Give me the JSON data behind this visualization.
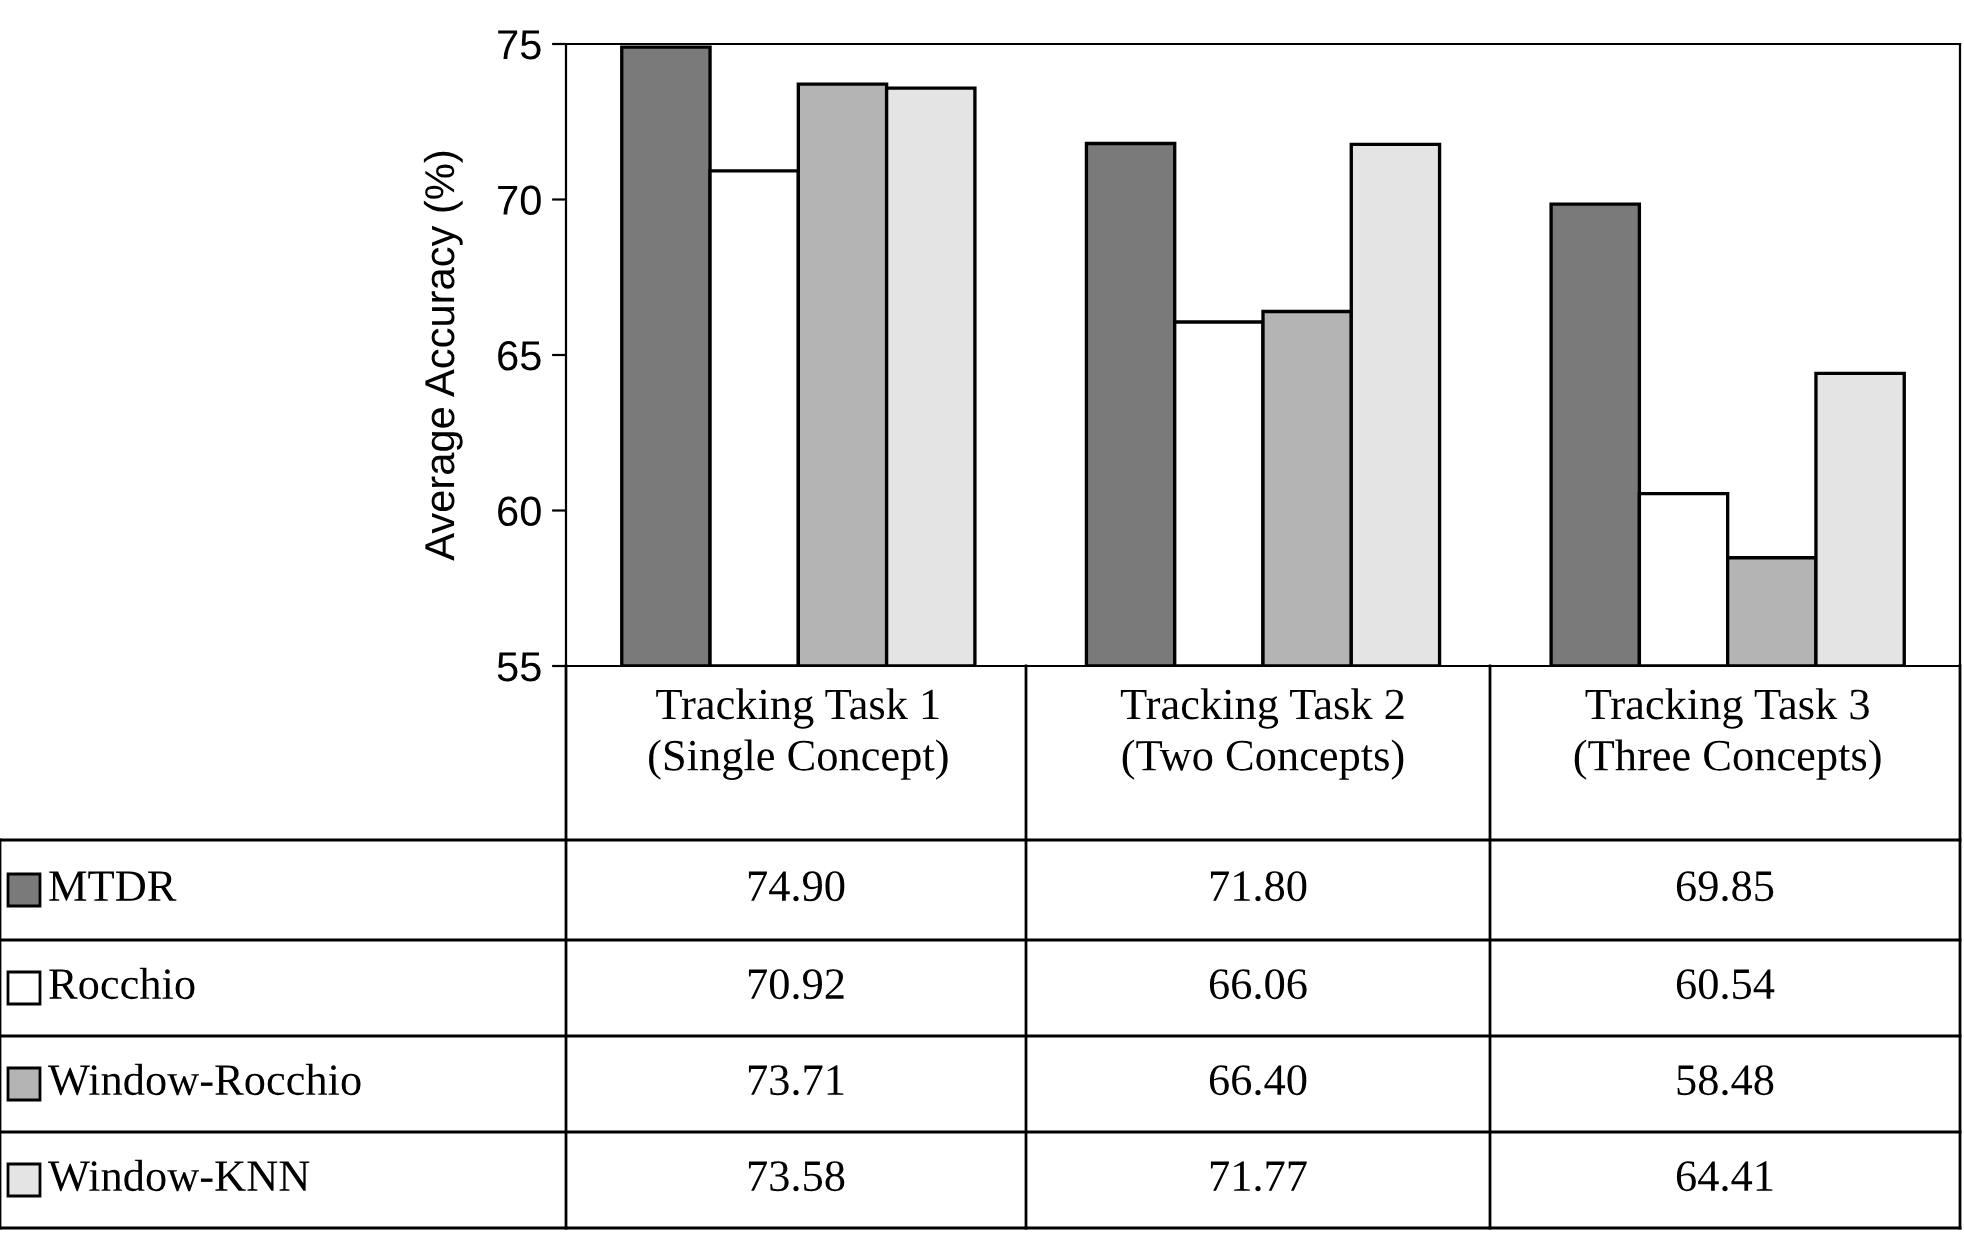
{
  "chart_data": {
    "type": "bar",
    "ylabel": "Average Accuracy (%)",
    "categories": [
      "Tracking Task 1\n(Single Concept)",
      "Tracking Task 2\n(Two Concepts)",
      "Tracking Task 3\n(Three Concepts)"
    ],
    "series": [
      {
        "name": "MTDR",
        "color": "#7a7a7a",
        "values": [
          74.9,
          71.8,
          69.85
        ],
        "value_labels": [
          "74.90",
          "71.80",
          "69.85"
        ]
      },
      {
        "name": "Rocchio",
        "color": "#ffffff",
        "values": [
          70.92,
          66.06,
          60.54
        ],
        "value_labels": [
          "70.92",
          "66.06",
          "60.54"
        ]
      },
      {
        "name": "Window-Rocchio",
        "color": "#b4b4b4",
        "values": [
          73.71,
          66.4,
          58.48
        ],
        "value_labels": [
          "73.71",
          "66.40",
          "58.48"
        ]
      },
      {
        "name": "Window-KNN",
        "color": "#e4e4e4",
        "values": [
          73.58,
          71.77,
          64.41
        ],
        "value_labels": [
          "73.58",
          "71.77",
          "64.41"
        ]
      }
    ],
    "ylim": [
      55,
      75
    ],
    "yticks": [
      55,
      60,
      65,
      70,
      75
    ],
    "grid": false,
    "legend": "bottom"
  }
}
